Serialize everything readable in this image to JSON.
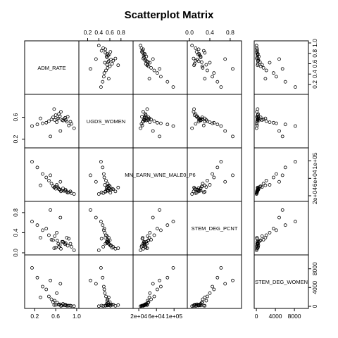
{
  "chart_data": {
    "type": "scatter",
    "title": "Scatterplot Matrix",
    "variables": [
      "ADM_RATE",
      "UGDS_WOMEN",
      "MN_EARN_WNE_MALE0_P6",
      "STEM_DEG_PCNT",
      "STEM_DEG_WOMEN"
    ],
    "diagonal_labels": [
      "ADM_RATE",
      "UGDS_WOMEN",
      "MN_EARN_WNE_MALE0_P6",
      "STEM_DEG_PCNT",
      "STEM_DEG_WOMEN"
    ],
    "ranges": [
      [
        0.05,
        1.0
      ],
      [
        0.08,
        0.98
      ],
      [
        12000,
        125000
      ],
      [
        0.0,
        0.98
      ],
      [
        0,
        10500
      ]
    ],
    "ticks": {
      "bottom": [
        {
          "var": 0,
          "values": [
            0.2,
            0.6,
            1.0
          ],
          "labels": [
            "0.2",
            "0.6",
            "1.0"
          ]
        },
        {
          "var": 2,
          "values": [
            20000,
            60000,
            100000
          ],
          "labels": [
            "2e+04",
            "6e+04",
            "1e+05"
          ]
        },
        {
          "var": 4,
          "values": [
            0,
            4000,
            8000
          ],
          "labels": [
            "0",
            "4000",
            "8000"
          ]
        }
      ],
      "top": [
        {
          "var": 1,
          "values": [
            0.2,
            0.4,
            0.6,
            0.8
          ],
          "labels": [
            "0.2",
            "0.4",
            "0.6",
            "0.8"
          ]
        },
        {
          "var": 3,
          "values": [
            0.0,
            0.4,
            0.8
          ],
          "labels": [
            "0.0",
            "0.4",
            "0.8"
          ]
        }
      ],
      "left": [
        {
          "var": 1,
          "values": [
            0.2,
            0.6
          ],
          "labels": [
            "0.2",
            "0.6"
          ]
        },
        {
          "var": 3,
          "values": [
            0.0,
            0.4,
            0.8
          ],
          "labels": [
            "0.0",
            "0.4",
            "0.8"
          ]
        }
      ],
      "right": [
        {
          "var": 0,
          "values": [
            0.2,
            0.4,
            0.6,
            0.8,
            1.0
          ],
          "labels": [
            "0.2",
            "0.4",
            "0.6",
            "0.8",
            "1.0"
          ]
        },
        {
          "var": 2,
          "values": [
            20000,
            60000,
            100000
          ],
          "labels": [
            "2e+04",
            "6e+04",
            "1e+05"
          ]
        },
        {
          "var": 4,
          "values": [
            0,
            4000,
            8000
          ],
          "labels": [
            "0",
            "4000",
            "8000"
          ]
        }
      ]
    },
    "marker": "open-circle",
    "point_color": "#000000",
    "grid": false,
    "legend": "none",
    "sample_points": [
      [
        0.72,
        0.55,
        32000,
        0.22,
        180
      ],
      [
        0.65,
        0.58,
        38000,
        0.18,
        350
      ],
      [
        0.81,
        0.52,
        29000,
        0.3,
        120
      ],
      [
        0.55,
        0.6,
        42000,
        0.25,
        900
      ],
      [
        0.9,
        0.48,
        26000,
        0.12,
        60
      ],
      [
        0.47,
        0.53,
        55000,
        0.35,
        2100
      ],
      [
        0.68,
        0.62,
        34000,
        0.15,
        420
      ],
      [
        0.76,
        0.57,
        31000,
        0.2,
        250
      ],
      [
        0.35,
        0.49,
        70000,
        0.45,
        4200
      ],
      [
        0.6,
        0.64,
        36000,
        0.1,
        300
      ],
      [
        0.85,
        0.45,
        28000,
        0.28,
        150
      ],
      [
        0.58,
        0.55,
        40000,
        0.33,
        1200
      ],
      [
        0.25,
        0.47,
        85000,
        0.55,
        6100
      ],
      [
        0.7,
        0.7,
        30000,
        0.08,
        90
      ],
      [
        0.62,
        0.51,
        45000,
        0.4,
        2800
      ],
      [
        0.78,
        0.59,
        33000,
        0.17,
        200
      ],
      [
        0.52,
        0.56,
        48000,
        0.26,
        1500
      ],
      [
        0.95,
        0.4,
        24000,
        0.05,
        30
      ],
      [
        0.15,
        0.44,
        98000,
        0.62,
        8200
      ],
      [
        0.66,
        0.66,
        35000,
        0.12,
        380
      ],
      [
        0.74,
        0.54,
        37000,
        0.22,
        520
      ],
      [
        0.42,
        0.5,
        62000,
        0.48,
        3600
      ],
      [
        0.83,
        0.61,
        27000,
        0.14,
        110
      ],
      [
        0.57,
        0.75,
        39000,
        0.09,
        260
      ],
      [
        0.69,
        0.35,
        52000,
        0.7,
        4800
      ],
      [
        0.31,
        0.58,
        44000,
        0.3,
        1900
      ],
      [
        0.88,
        0.52,
        30000,
        0.18,
        140
      ],
      [
        0.63,
        0.57,
        41000,
        0.24,
        760
      ],
      [
        0.5,
        0.25,
        67000,
        0.85,
        5500
      ],
      [
        0.79,
        0.55,
        33500,
        0.19,
        330
      ]
    ]
  }
}
